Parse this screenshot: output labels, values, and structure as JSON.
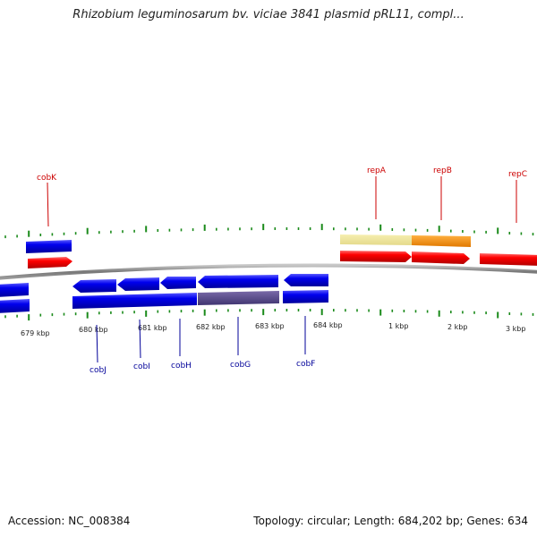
{
  "title": "Rhizobium leguminosarum bv. viciae 3841 plasmid pRL11, compl...",
  "footer": {
    "accession": "Accession: NC_008384",
    "summary": "Topology: circular; Length: 684,202 bp; Genes: 634"
  },
  "scale_labels": [
    "679 kbp",
    "680 kbp",
    "681 kbp",
    "682 kbp",
    "683 kbp",
    "684 kbp",
    "1 kbp",
    "2 kbp",
    "3 kbp"
  ],
  "genes_top": [
    {
      "name": "cobK",
      "color": "#cc0000"
    },
    {
      "name": "repA",
      "color": "#cc0000"
    },
    {
      "name": "repB",
      "color": "#cc0000"
    },
    {
      "name": "repC",
      "color": "#cc0000"
    }
  ],
  "genes_bottom": [
    {
      "name": "cobJ",
      "color": "#000099"
    },
    {
      "name": "cobI",
      "color": "#000099"
    },
    {
      "name": "cobH",
      "color": "#000099"
    },
    {
      "name": "cobG",
      "color": "#000099"
    },
    {
      "name": "cobF",
      "color": "#000099"
    }
  ],
  "colors": {
    "forward_gene": "#ff0000",
    "reverse_gene": "#0000ee",
    "highlight_cds": "#f0e68c",
    "highlight_cds_2": "#ff8c00",
    "highlight_reverse": "#5a4a8a",
    "tick": "#1a8a1a",
    "backbone": "#888888"
  }
}
